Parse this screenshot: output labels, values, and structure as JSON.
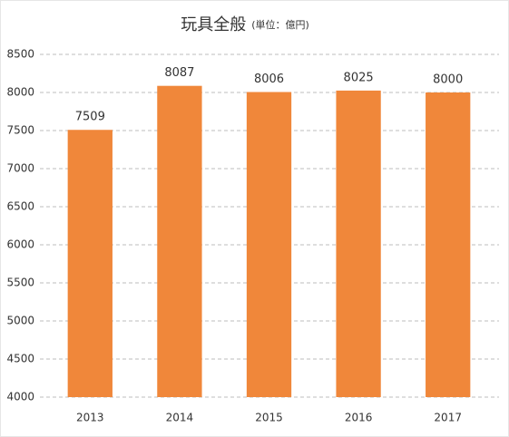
{
  "chart_data": {
    "type": "bar",
    "title": "玩具全般",
    "subtitle": "(単位：億円)",
    "categories": [
      "2013",
      "2014",
      "2015",
      "2016",
      "2017"
    ],
    "values": [
      7509,
      8087,
      8006,
      8025,
      8000
    ],
    "color": "#f0873a",
    "ylim": [
      4000,
      8500
    ],
    "yticks": [
      4000,
      4500,
      5000,
      5500,
      6000,
      6500,
      7000,
      7500,
      8000,
      8500
    ],
    "grid": true
  }
}
